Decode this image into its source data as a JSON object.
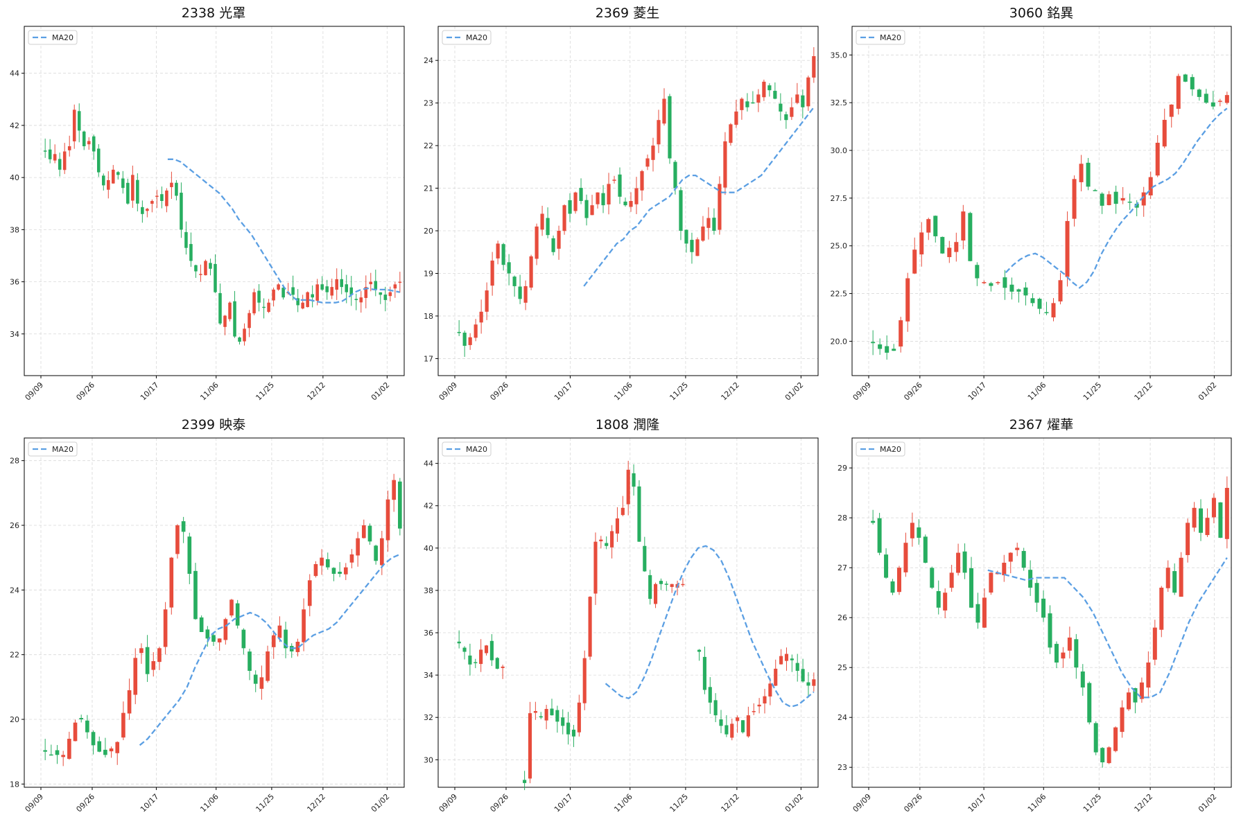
{
  "colors": {
    "up": "#e74c3c",
    "down": "#27ae60",
    "ma": "#5b9fe3",
    "grid": "#d9d9d9"
  },
  "chart_data": [
    {
      "type": "candlestick",
      "title": "2338 光罩",
      "legend": {
        "label": "MA20",
        "position": "top-left"
      },
      "x_ticks": [
        "09/09",
        "09/26",
        "10/17",
        "11/06",
        "11/25",
        "12/12",
        "01/02"
      ],
      "x_tick_index": [
        0,
        12,
        27,
        41,
        54,
        66,
        81
      ],
      "ylim": [
        32.4,
        45.8
      ],
      "y_ticks": [
        34,
        36,
        38,
        40,
        42,
        44
      ],
      "y_format": 0,
      "grid": true,
      "closes": [
        41.0,
        40.7,
        40.9,
        40.3,
        41.0,
        41.2,
        42.6,
        41.8,
        41.2,
        41.4,
        41.0,
        40.2,
        39.7,
        39.9,
        40.3,
        40.1,
        39.6,
        39.0,
        40.1,
        39.0,
        38.6,
        38.8,
        39.1,
        39.3,
        39.1,
        39.5,
        39.8,
        39.3,
        38.0,
        37.3,
        36.8,
        36.4,
        36.3,
        36.8,
        36.5,
        35.6,
        34.4,
        34.7,
        35.2,
        33.9,
        33.7,
        34.2,
        34.8,
        35.6,
        35.2,
        35.0,
        35.2,
        35.7,
        35.9,
        35.4,
        35.6,
        35.5,
        35.1,
        35.2,
        35.6,
        35.4,
        35.9,
        35.7,
        35.6,
        35.8,
        36.1,
        35.8,
        35.6,
        35.5,
        35.3,
        35.4,
        35.8,
        36.0,
        35.7,
        35.5,
        35.3,
        35.6,
        35.9,
        36.0
      ],
      "ma": [
        null,
        null,
        null,
        null,
        null,
        null,
        null,
        null,
        null,
        null,
        null,
        null,
        null,
        null,
        null,
        null,
        null,
        null,
        null,
        40.7,
        40.7,
        40.6,
        40.4,
        40.2,
        40.0,
        39.8,
        39.6,
        39.4,
        39.1,
        38.8,
        38.4,
        38.1,
        37.8,
        37.4,
        37.0,
        36.6,
        36.2,
        35.8,
        35.5,
        35.3,
        35.3,
        35.3,
        35.25,
        35.2,
        35.2,
        35.2,
        35.25,
        35.4,
        35.6,
        35.7,
        35.75,
        35.7,
        35.7,
        35.7,
        35.65,
        35.6
      ]
    },
    {
      "type": "candlestick",
      "title": "2369 菱生",
      "legend": {
        "label": "MA20",
        "position": "top-left"
      },
      "x_ticks": [
        "09/09",
        "09/26",
        "10/17",
        "11/06",
        "11/25",
        "12/12",
        "01/02"
      ],
      "x_tick_index": [
        0,
        12,
        27,
        41,
        54,
        66,
        81
      ],
      "ylim": [
        16.6,
        24.8
      ],
      "y_ticks": [
        17,
        18,
        19,
        20,
        21,
        22,
        23,
        24
      ],
      "y_format": 0,
      "grid": true,
      "closes": [
        17.6,
        17.3,
        17.5,
        17.8,
        18.1,
        18.6,
        19.3,
        19.7,
        19.2,
        19.0,
        18.7,
        18.4,
        18.7,
        19.4,
        20.1,
        20.4,
        19.9,
        19.5,
        20.0,
        20.6,
        20.4,
        20.9,
        20.7,
        20.3,
        20.6,
        20.9,
        20.6,
        21.1,
        21.2,
        20.8,
        20.6,
        20.7,
        21.0,
        21.4,
        21.7,
        22.0,
        22.6,
        23.1,
        21.7,
        21.0,
        20.0,
        19.7,
        19.5,
        19.8,
        20.1,
        20.3,
        20.0,
        21.1,
        22.1,
        22.5,
        22.8,
        23.1,
        22.9,
        23.0,
        23.2,
        23.5,
        23.3,
        23.1,
        22.8,
        22.6,
        22.9,
        23.2,
        22.9,
        23.6,
        24.1
      ],
      "ma": [
        null,
        null,
        null,
        null,
        null,
        null,
        null,
        null,
        null,
        null,
        null,
        null,
        null,
        null,
        null,
        null,
        null,
        null,
        null,
        18.7,
        18.9,
        19.1,
        19.3,
        19.5,
        19.7,
        19.8,
        20.0,
        20.1,
        20.3,
        20.5,
        20.6,
        20.7,
        20.8,
        21.0,
        21.2,
        21.3,
        21.3,
        21.2,
        21.1,
        21.0,
        20.9,
        20.9,
        20.9,
        21.0,
        21.1,
        21.2,
        21.3,
        21.5,
        21.7,
        21.9,
        22.1,
        22.3,
        22.5,
        22.7,
        22.9
      ]
    },
    {
      "type": "candlestick",
      "title": "3060 銘異",
      "legend": {
        "label": "MA20",
        "position": "top-left"
      },
      "x_ticks": [
        "09/09",
        "09/26",
        "10/17",
        "11/06",
        "11/25",
        "12/12",
        "01/02"
      ],
      "x_tick_index": [
        0,
        12,
        27,
        41,
        54,
        66,
        81
      ],
      "ylim": [
        18.2,
        36.5
      ],
      "y_ticks": [
        20.0,
        22.5,
        25.0,
        27.5,
        30.0,
        32.5,
        35.0
      ],
      "y_format": 1,
      "grid": true,
      "closes": [
        19.9,
        19.6,
        19.4,
        19.5,
        21.1,
        23.3,
        24.8,
        25.7,
        26.4,
        25.5,
        24.6,
        24.9,
        25.2,
        26.8,
        24.2,
        23.3,
        23.1,
        22.9,
        23.1,
        22.8,
        22.6,
        22.6,
        22.4,
        22.0,
        21.7,
        21.5,
        22.0,
        23.2,
        26.3,
        28.5,
        29.3,
        28.1,
        27.9,
        27.1,
        27.7,
        27.2,
        27.5,
        27.3,
        27.0,
        27.8,
        28.6,
        30.4,
        31.6,
        32.4,
        33.9,
        33.6,
        33.2,
        32.8,
        32.5,
        32.3,
        32.6,
        32.9
      ],
      "ma": [
        null,
        null,
        null,
        null,
        null,
        null,
        null,
        null,
        null,
        null,
        null,
        null,
        null,
        null,
        null,
        null,
        null,
        null,
        23.6,
        24.0,
        24.3,
        24.5,
        24.6,
        24.4,
        24.1,
        23.8,
        23.5,
        23.1,
        22.8,
        23.1,
        23.7,
        24.6,
        25.3,
        25.9,
        26.4,
        26.8,
        27.3,
        27.7,
        28.1,
        28.3,
        28.5,
        28.8,
        29.3,
        29.9,
        30.5,
        31.0,
        31.5,
        31.9,
        32.2
      ]
    },
    {
      "type": "candlestick",
      "title": "2399 映泰",
      "legend": {
        "label": "MA20",
        "position": "top-left"
      },
      "x_ticks": [
        "09/09",
        "09/26",
        "10/17",
        "11/06",
        "11/25",
        "12/12",
        "01/02"
      ],
      "x_tick_index": [
        0,
        12,
        27,
        41,
        54,
        66,
        81
      ],
      "ylim": [
        17.9,
        28.7
      ],
      "y_ticks": [
        18,
        20,
        22,
        24,
        26,
        28
      ],
      "y_format": 0,
      "grid": true,
      "closes": [
        19.0,
        18.9,
        18.9,
        18.9,
        19.4,
        19.9,
        20.0,
        19.6,
        19.2,
        19.0,
        18.9,
        19.1,
        19.3,
        20.2,
        20.9,
        21.9,
        22.2,
        21.4,
        21.8,
        22.2,
        23.4,
        25.0,
        26.0,
        25.8,
        24.5,
        23.1,
        22.7,
        22.5,
        22.4,
        22.5,
        23.1,
        23.7,
        22.9,
        22.2,
        21.5,
        21.1,
        21.3,
        22.1,
        22.6,
        22.9,
        22.2,
        22.1,
        22.4,
        23.4,
        24.3,
        24.8,
        25.0,
        24.7,
        24.5,
        24.5,
        24.7,
        25.1,
        25.6,
        26.0,
        25.5,
        24.9,
        25.6,
        26.8,
        27.4,
        25.9
      ],
      "ma": [
        null,
        null,
        null,
        null,
        null,
        null,
        null,
        null,
        null,
        null,
        null,
        null,
        19.2,
        19.4,
        19.7,
        20.0,
        20.3,
        20.6,
        21.0,
        21.6,
        22.1,
        22.6,
        22.8,
        22.9,
        23.1,
        23.2,
        23.3,
        23.2,
        23.0,
        22.7,
        22.4,
        22.2,
        22.2,
        22.4,
        22.6,
        22.7,
        22.8,
        23.0,
        23.3,
        23.6,
        23.9,
        24.2,
        24.5,
        24.8,
        25.0,
        25.1
      ]
    },
    {
      "type": "candlestick",
      "title": "1808 潤隆",
      "legend": {
        "label": "MA20",
        "position": "top-left"
      },
      "x_ticks": [
        "09/09",
        "09/26",
        "10/17",
        "11/06",
        "11/25",
        "12/12",
        "01/02"
      ],
      "x_tick_index": [
        0,
        12,
        27,
        41,
        54,
        66,
        81
      ],
      "ylim": [
        28.7,
        45.2
      ],
      "y_ticks": [
        30,
        32,
        34,
        36,
        38,
        40,
        42,
        44
      ],
      "y_format": 0,
      "grid": true,
      "closes": [
        35.5,
        35.1,
        34.5,
        34.6,
        35.2,
        35.4,
        34.7,
        34.3,
        34.4,
        null,
        null,
        null,
        28.9,
        32.2,
        32.3,
        32.0,
        32.4,
        32.1,
        31.8,
        31.6,
        31.2,
        31.1,
        32.7,
        34.8,
        37.7,
        40.3,
        40.4,
        40.1,
        40.8,
        41.4,
        41.9,
        43.7,
        42.9,
        40.3,
        38.9,
        37.6,
        38.3,
        38.3,
        38.3,
        38.3,
        38.3,
        38.3,
        null,
        null,
        35.1,
        33.3,
        32.7,
        32.1,
        31.6,
        31.2,
        31.7,
        32.0,
        31.3,
        32.1,
        32.3,
        32.6,
        33.0,
        33.6,
        34.3,
        34.9,
        35.0,
        34.7,
        34.2,
        33.7,
        33.5,
        33.8
      ],
      "ma": [
        null,
        null,
        null,
        null,
        null,
        null,
        null,
        null,
        null,
        null,
        null,
        null,
        null,
        null,
        null,
        null,
        null,
        null,
        null,
        33.6,
        33.3,
        33.0,
        32.9,
        33.2,
        33.9,
        34.8,
        35.9,
        36.9,
        37.9,
        38.8,
        39.5,
        40.0,
        40.1,
        39.9,
        39.4,
        38.6,
        37.6,
        36.6,
        35.6,
        34.8,
        34.0,
        33.3,
        32.7,
        32.5,
        32.6,
        32.9,
        33.2
      ]
    },
    {
      "type": "candlestick",
      "title": "2367 燿華",
      "legend": {
        "label": "MA20",
        "position": "top-left"
      },
      "x_ticks": [
        "09/09",
        "09/26",
        "10/17",
        "11/06",
        "11/25",
        "12/12",
        "01/02"
      ],
      "x_tick_index": [
        0,
        12,
        27,
        41,
        54,
        66,
        81
      ],
      "ylim": [
        22.6,
        29.6
      ],
      "y_ticks": [
        23,
        24,
        25,
        26,
        27,
        28,
        29
      ],
      "y_format": 0,
      "grid": true,
      "closes": [
        27.9,
        27.3,
        26.8,
        26.5,
        27.0,
        27.5,
        27.9,
        27.6,
        27.1,
        26.6,
        26.2,
        26.5,
        26.9,
        27.3,
        26.9,
        26.2,
        25.9,
        26.4,
        26.9,
        26.9,
        27.1,
        27.3,
        27.4,
        27.0,
        26.6,
        26.3,
        26.0,
        25.4,
        25.1,
        25.3,
        25.6,
        25.0,
        24.6,
        23.9,
        23.3,
        23.1,
        23.4,
        23.8,
        24.2,
        24.5,
        24.3,
        24.7,
        25.1,
        25.8,
        26.6,
        27.0,
        26.5,
        27.2,
        27.9,
        28.2,
        27.7,
        28.0,
        28.4,
        27.6,
        28.6
      ],
      "ma": [
        null,
        null,
        null,
        null,
        null,
        null,
        null,
        null,
        null,
        null,
        null,
        null,
        26.95,
        26.9,
        26.85,
        26.8,
        26.75,
        26.8,
        26.8,
        26.8,
        26.8,
        26.6,
        26.4,
        26.1,
        25.7,
        25.3,
        24.9,
        24.6,
        24.4,
        24.4,
        24.5,
        24.9,
        25.4,
        25.9,
        26.3,
        26.6,
        26.9,
        27.2
      ]
    }
  ]
}
